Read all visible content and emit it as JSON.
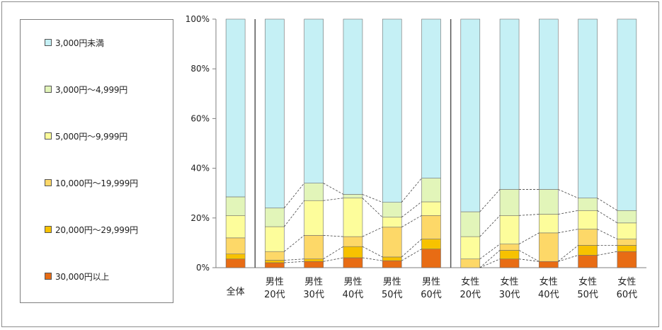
{
  "legend": {
    "items": [
      {
        "label": "3,000円未満",
        "color": "#c5f0f5"
      },
      {
        "label": "3,000円～4,999円",
        "color": "#e2f5b9"
      },
      {
        "label": "5,000円～9,999円",
        "color": "#fdfd9b"
      },
      {
        "label": "10,000円～19,999円",
        "color": "#fdd868"
      },
      {
        "label": "20,000円～29,999円",
        "color": "#f7c200"
      },
      {
        "label": "30,000円以上",
        "color": "#e86c14"
      }
    ]
  },
  "chart_data": {
    "type": "bar",
    "stacked": true,
    "percent": true,
    "categories": [
      [
        "全体"
      ],
      [
        "男性",
        "20代"
      ],
      [
        "男性",
        "30代"
      ],
      [
        "男性",
        "40代"
      ],
      [
        "男性",
        "50代"
      ],
      [
        "男性",
        "60代"
      ],
      [
        "女性",
        "20代"
      ],
      [
        "女性",
        "30代"
      ],
      [
        "女性",
        "40代"
      ],
      [
        "女性",
        "50代"
      ],
      [
        "女性",
        "60代"
      ]
    ],
    "ylim": [
      0,
      100
    ],
    "yticks": [
      "0%",
      "20%",
      "40%",
      "60%",
      "80%",
      "100%"
    ],
    "grid": false,
    "legend_position": "left",
    "series_line_connectors": true,
    "series": [
      {
        "name": "30,000円以上",
        "values": [
          3.5,
          2.0,
          2.5,
          4.0,
          2.8,
          7.5,
          0.0,
          3.5,
          2.5,
          5.0,
          6.5
        ]
      },
      {
        "name": "20,000円～29,999円",
        "values": [
          2.0,
          1.0,
          1.0,
          4.5,
          1.5,
          4.0,
          0.0,
          3.5,
          0.0,
          4.0,
          2.5
        ]
      },
      {
        "name": "10,000円～19,999円",
        "values": [
          6.5,
          3.5,
          9.5,
          4.0,
          12.0,
          9.5,
          3.5,
          2.5,
          11.5,
          6.5,
          2.5
        ]
      },
      {
        "name": "5,000円～9,999円",
        "values": [
          9.0,
          10.0,
          14.0,
          15.5,
          4.0,
          5.5,
          9.0,
          11.5,
          7.5,
          7.5,
          6.5
        ]
      },
      {
        "name": "3,000円～4,999円",
        "values": [
          7.5,
          7.5,
          7.0,
          1.5,
          6.0,
          9.5,
          10.0,
          10.5,
          10.0,
          5.0,
          5.0
        ]
      },
      {
        "name": "3,000円未満",
        "values": [
          71.5,
          76.0,
          66.0,
          70.5,
          73.7,
          64.0,
          77.5,
          68.5,
          68.5,
          72.0,
          77.0
        ]
      }
    ]
  }
}
